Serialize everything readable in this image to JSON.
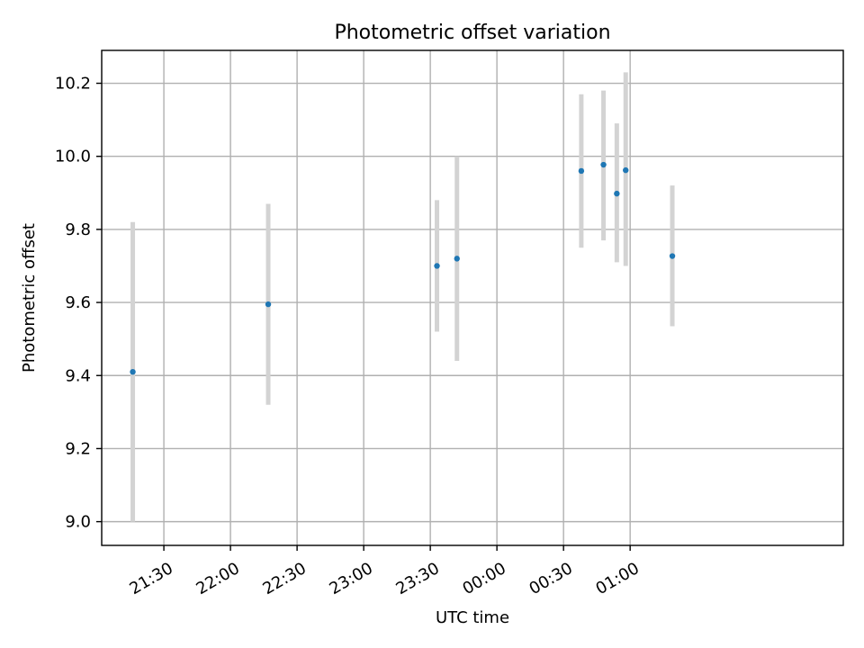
{
  "chart_data": {
    "type": "scatter",
    "title": "Photometric offset variation",
    "xlabel": "UTC time",
    "ylabel": "Photometric offset",
    "x_ticks": [
      "21:30",
      "22:00",
      "22:30",
      "23:00",
      "23:30",
      "00:00",
      "00:30",
      "01:00"
    ],
    "y_ticks": [
      "9.0",
      "9.2",
      "9.4",
      "9.6",
      "9.8",
      "10.0",
      "10.2"
    ],
    "xlim": [
      "21:02",
      "02:36"
    ],
    "ylim": [
      8.935,
      10.29
    ],
    "grid": true,
    "series": [
      {
        "color": "#1f77b4",
        "error_color": "#d3d3d3",
        "points": [
          {
            "x": "21:16",
            "y": 9.41,
            "yerr_low": 9.0,
            "yerr_high": 9.82
          },
          {
            "x": "22:17",
            "y": 9.595,
            "yerr_low": 9.32,
            "yerr_high": 9.87
          },
          {
            "x": "23:33",
            "y": 9.7,
            "yerr_low": 9.52,
            "yerr_high": 9.88
          },
          {
            "x": "23:42",
            "y": 9.72,
            "yerr_low": 9.44,
            "yerr_high": 10.0
          },
          {
            "x": "00:38",
            "y": 9.96,
            "yerr_low": 9.75,
            "yerr_high": 10.17
          },
          {
            "x": "00:48",
            "y": 9.977,
            "yerr_low": 9.77,
            "yerr_high": 10.18
          },
          {
            "x": "00:54",
            "y": 9.898,
            "yerr_low": 9.71,
            "yerr_high": 10.09
          },
          {
            "x": "00:58",
            "y": 9.962,
            "yerr_low": 9.7,
            "yerr_high": 10.23
          },
          {
            "x": "01:19",
            "y": 9.727,
            "yerr_low": 9.535,
            "yerr_high": 9.92
          }
        ]
      }
    ]
  }
}
